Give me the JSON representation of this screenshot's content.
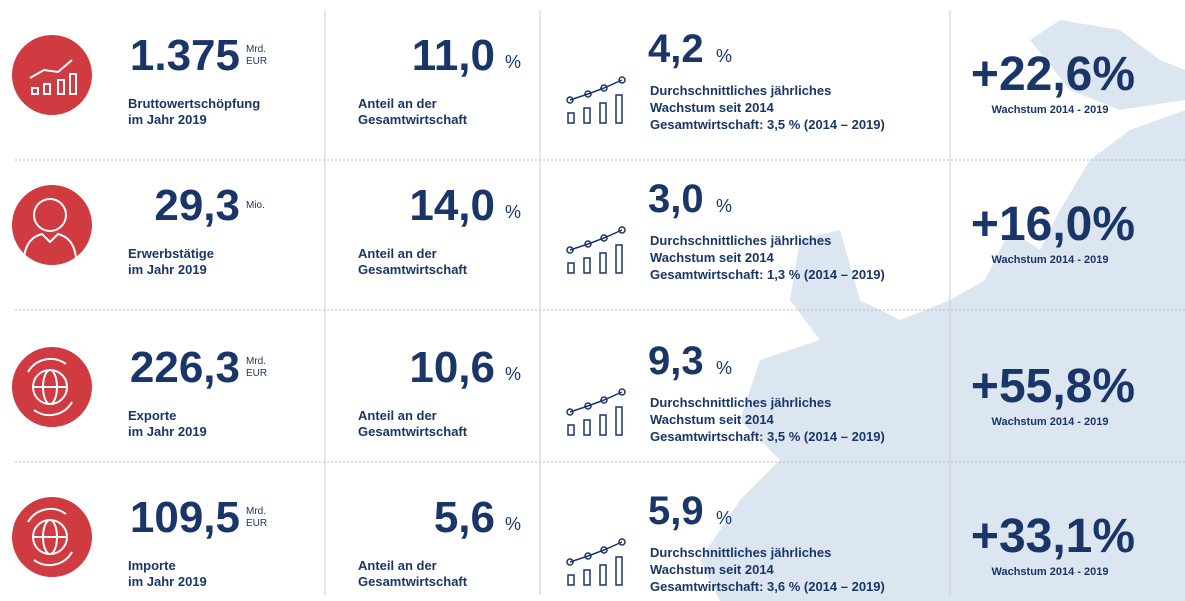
{
  "rows": [
    {
      "value": "1.375",
      "unit": [
        "Mrd.",
        "EUR"
      ],
      "label": [
        "Bruttowertschöpfung",
        "im Jahr 2019"
      ],
      "share": "11,0",
      "share_unit": "%",
      "share_label": [
        "Anteil an der",
        "Gesamtwirtschaft"
      ],
      "growth": "4,2",
      "growth_unit": "%",
      "growth_label": [
        "Durchschnittliches jährliches",
        "Wachstum seit 2014",
        "Gesamtwirtschaft: 3,5 % (2014 – 2019)"
      ],
      "total": "+22,6%",
      "total_label": "Wachstum 2014 - 2019"
    },
    {
      "value": "29,3",
      "unit": [
        "Mio."
      ],
      "label": [
        "Erwerbstätige",
        "im Jahr 2019"
      ],
      "share": "14,0",
      "share_unit": "%",
      "share_label": [
        "Anteil an der",
        "Gesamtwirtschaft"
      ],
      "growth": "3,0",
      "growth_unit": "%",
      "growth_label": [
        "Durchschnittliches jährliches",
        "Wachstum seit 2014",
        "Gesamtwirtschaft: 1,3 % (2014 – 2019)"
      ],
      "total": "+16,0%",
      "total_label": "Wachstum 2014 - 2019"
    },
    {
      "value": "226,3",
      "unit": [
        "Mrd.",
        "EUR"
      ],
      "label": [
        "Exporte",
        "im Jahr 2019"
      ],
      "share": "10,6",
      "share_unit": "%",
      "share_label": [
        "Anteil an der",
        "Gesamtwirtschaft"
      ],
      "growth": "9,3",
      "growth_unit": "%",
      "growth_label": [
        "Durchschnittliches jährliches",
        "Wachstum seit 2014",
        "Gesamtwirtschaft: 3,5 % (2014 – 2019)"
      ],
      "total": "+55,8%",
      "total_label": "Wachstum 2014 - 2019"
    },
    {
      "value": "109,5",
      "unit": [
        "Mrd.",
        "EUR"
      ],
      "label": [
        "Importe",
        "im Jahr 2019"
      ],
      "share": "5,6",
      "share_unit": "%",
      "share_label": [
        "Anteil an der",
        "Gesamtwirtschaft"
      ],
      "growth": "5,9",
      "growth_unit": "%",
      "growth_label": [
        "Durchschnittliches jährliches",
        "Wachstum seit 2014",
        "Gesamtwirtschaft: 3,6 % (2014 – 2019)"
      ],
      "total": "+33,1%",
      "total_label": "Wachstum 2014 - 2019"
    }
  ]
}
